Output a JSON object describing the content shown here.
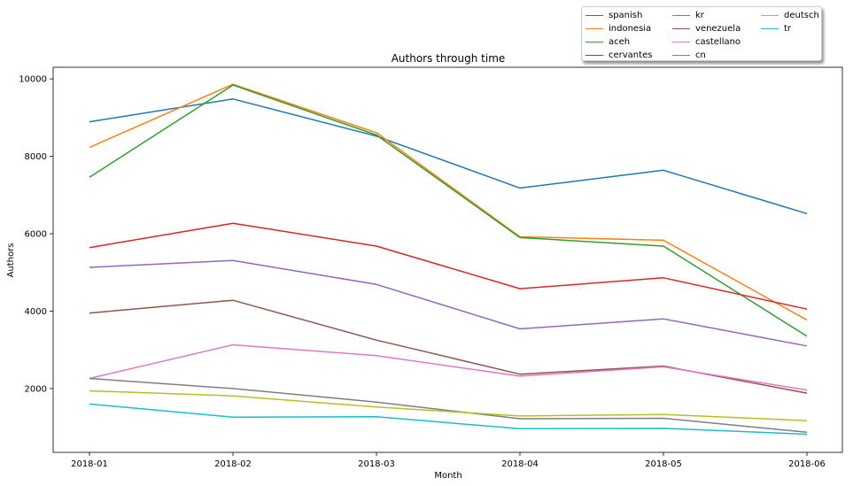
{
  "chart_data": {
    "type": "line",
    "title": "Authors through time",
    "xlabel": "Month",
    "ylabel": "Authors",
    "categories": [
      "2018-01",
      "2018-02",
      "2018-03",
      "2018-04",
      "2018-05",
      "2018-06"
    ],
    "yticks": [
      2000,
      4000,
      6000,
      8000,
      10000
    ],
    "ylim": [
      350,
      10300
    ],
    "grid": false,
    "legend_position": "top-right, above plot",
    "series": [
      {
        "name": "spanish",
        "color": "#1f77b4",
        "values": [
          8890,
          9480,
          8520,
          7180,
          7640,
          6520
        ]
      },
      {
        "name": "indonesia",
        "color": "#ff7f0e",
        "values": [
          8230,
          9860,
          8610,
          5920,
          5830,
          3770
        ]
      },
      {
        "name": "aceh",
        "color": "#2ca02c",
        "values": [
          7460,
          9840,
          8550,
          5900,
          5680,
          3350
        ]
      },
      {
        "name": "cervantes",
        "color": "#d62728",
        "values": [
          5640,
          6270,
          5680,
          4580,
          4860,
          4050
        ]
      },
      {
        "name": "kr",
        "color": "#9467bd",
        "values": [
          5130,
          5310,
          4690,
          3540,
          3800,
          3100
        ]
      },
      {
        "name": "venezuela",
        "color": "#8c564b",
        "values": [
          3950,
          4280,
          3250,
          2370,
          2580,
          1880
        ]
      },
      {
        "name": "castellano",
        "color": "#e377c2",
        "values": [
          2260,
          3130,
          2850,
          2320,
          2560,
          1960
        ]
      },
      {
        "name": "cn",
        "color": "#7f7f7f",
        "values": [
          2260,
          2000,
          1650,
          1220,
          1230,
          870
        ]
      },
      {
        "name": "deutsch",
        "color": "#bcbd22",
        "values": [
          1940,
          1810,
          1520,
          1290,
          1330,
          1170
        ]
      },
      {
        "name": "tr",
        "color": "#17becf",
        "values": [
          1600,
          1260,
          1270,
          960,
          970,
          820
        ]
      }
    ]
  }
}
